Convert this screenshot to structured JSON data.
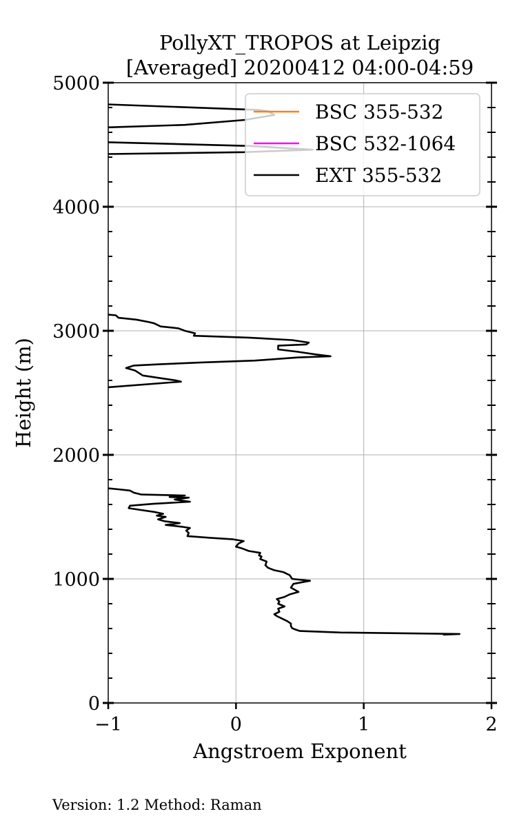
{
  "title_line1": "PollyXT_TROPOS at Leipzig",
  "title_line2": "[Averaged] 20200412 04:00-04:59",
  "footer": "Version: 1.2  Method: Raman",
  "chart_data": {
    "type": "line",
    "title": "PollyXT_TROPOS at Leipzig [Averaged] 20200412 04:00-04:59",
    "xlabel": "Angstroem Exponent",
    "ylabel": "Height (m)",
    "xlim": [
      -1,
      2
    ],
    "ylim": [
      0,
      5000
    ],
    "xticks": [
      -1,
      0,
      1,
      2
    ],
    "xtick_labels": [
      "−1",
      "0",
      "1",
      "2"
    ],
    "yticks": [
      0,
      1000,
      2000,
      3000,
      4000,
      5000
    ],
    "ytick_labels": [
      "0",
      "1000",
      "2000",
      "3000",
      "4000",
      "5000"
    ],
    "grid": true,
    "legend_position": "top-right",
    "series": [
      {
        "name": "BSC 355-532",
        "color": "#ff7f0e",
        "points": []
      },
      {
        "name": "BSC 532-1064",
        "color": "#ff00ff",
        "points": []
      },
      {
        "name": "EXT 355-532",
        "color": "#000000",
        "segments": [
          [
            [
              1.62,
              550
            ],
            [
              1.75,
              556
            ],
            [
              0.82,
              568
            ],
            [
              0.5,
              580
            ],
            [
              0.47,
              590
            ],
            [
              0.44,
              602
            ],
            [
              0.43,
              620
            ],
            [
              0.43,
              640
            ],
            [
              0.4,
              660
            ],
            [
              0.35,
              685
            ],
            [
              0.32,
              700
            ],
            [
              0.3,
              715
            ],
            [
              0.34,
              735
            ],
            [
              0.33,
              760
            ],
            [
              0.38,
              778
            ],
            [
              0.33,
              800
            ],
            [
              0.34,
              818
            ],
            [
              0.32,
              838
            ],
            [
              0.38,
              855
            ],
            [
              0.42,
              875
            ],
            [
              0.49,
              895
            ],
            [
              0.43,
              930
            ],
            [
              0.45,
              960
            ],
            [
              0.58,
              985
            ],
            [
              0.44,
              1000
            ],
            [
              0.42,
              1030
            ],
            [
              0.37,
              1055
            ],
            [
              0.3,
              1070
            ],
            [
              0.25,
              1090
            ],
            [
              0.23,
              1110
            ],
            [
              0.24,
              1140
            ],
            [
              0.19,
              1160
            ],
            [
              0.2,
              1180
            ],
            [
              0.18,
              1190
            ],
            [
              0.19,
              1210
            ],
            [
              0.1,
              1225
            ],
            [
              0.05,
              1245
            ],
            [
              0.0,
              1260
            ],
            [
              0.02,
              1285
            ],
            [
              0.06,
              1305
            ],
            [
              -0.03,
              1320
            ],
            [
              -0.19,
              1330
            ],
            [
              -0.38,
              1345
            ],
            [
              -0.37,
              1370
            ],
            [
              -0.39,
              1390
            ],
            [
              -0.36,
              1410
            ],
            [
              -0.42,
              1420
            ],
            [
              -0.55,
              1435
            ],
            [
              -0.44,
              1450
            ],
            [
              -0.56,
              1465
            ],
            [
              -0.61,
              1480
            ],
            [
              -0.55,
              1500
            ],
            [
              -0.62,
              1510
            ],
            [
              -0.57,
              1525
            ],
            [
              -0.64,
              1540
            ],
            [
              -0.74,
              1555
            ],
            [
              -0.84,
              1570
            ],
            [
              -0.83,
              1590
            ],
            [
              -0.65,
              1605
            ],
            [
              -0.36,
              1622
            ],
            [
              -0.48,
              1640
            ],
            [
              -0.37,
              1655
            ],
            [
              -0.52,
              1660
            ],
            [
              -0.4,
              1672
            ],
            [
              -0.74,
              1680
            ],
            [
              -0.8,
              1695
            ],
            [
              -0.83,
              1712
            ],
            [
              -0.92,
              1722
            ],
            [
              -1.0,
              1730
            ]
          ],
          [
            [
              -1.0,
              2545
            ],
            [
              -0.43,
              2590
            ],
            [
              -0.47,
              2600
            ],
            [
              -0.57,
              2615
            ],
            [
              -0.73,
              2640
            ],
            [
              -0.76,
              2660
            ],
            [
              -0.79,
              2680
            ],
            [
              -0.86,
              2700
            ],
            [
              -0.8,
              2720
            ],
            [
              -0.6,
              2730
            ],
            [
              -0.27,
              2745
            ],
            [
              0.15,
              2760
            ],
            [
              0.48,
              2785
            ],
            [
              0.74,
              2795
            ],
            [
              0.62,
              2810
            ],
            [
              0.49,
              2830
            ],
            [
              0.33,
              2850
            ],
            [
              0.33,
              2880
            ],
            [
              0.55,
              2890
            ],
            [
              0.57,
              2905
            ],
            [
              0.44,
              2925
            ],
            [
              0.1,
              2945
            ],
            [
              -0.33,
              2960
            ],
            [
              -0.32,
              2980
            ],
            [
              -0.4,
              3000
            ],
            [
              -0.45,
              3020
            ],
            [
              -0.59,
              3035
            ],
            [
              -0.64,
              3060
            ],
            [
              -0.68,
              3070
            ],
            [
              -0.78,
              3090
            ],
            [
              -0.92,
              3105
            ],
            [
              -0.94,
              3125
            ],
            [
              -1.0,
              3130
            ]
          ],
          [
            [
              -1.0,
              4425
            ],
            [
              0.06,
              4440
            ],
            [
              0.6,
              4460
            ],
            [
              0.11,
              4490
            ],
            [
              -1.0,
              4520
            ]
          ],
          [
            [
              -1.0,
              4640
            ],
            [
              -0.4,
              4660
            ],
            [
              0.07,
              4700
            ],
            [
              0.3,
              4740
            ],
            [
              0.25,
              4770
            ],
            [
              0.18,
              4780
            ],
            [
              -1.0,
              4825
            ]
          ]
        ]
      }
    ]
  }
}
